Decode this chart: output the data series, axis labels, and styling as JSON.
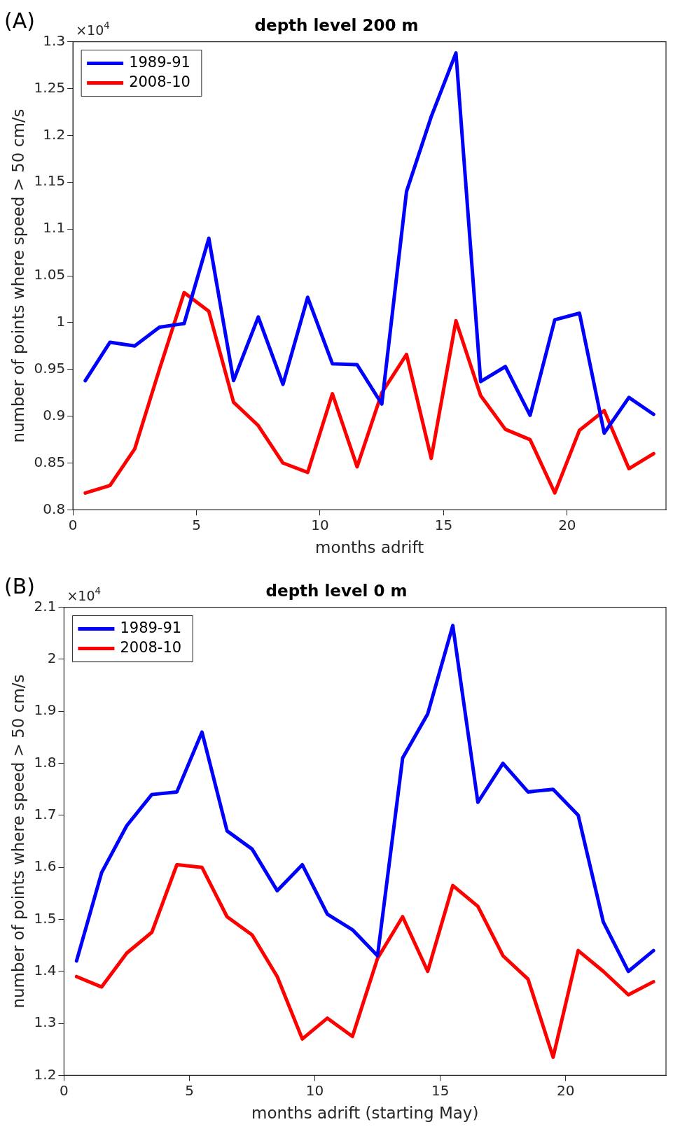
{
  "chart_data": [
    {
      "type": "line",
      "title": "depth level 200 m",
      "xlabel": "months adrift",
      "ylabel": "number of points where speed > 50 cm/s",
      "annotations": [
        "(A)",
        "×10$^{4}$"
      ],
      "x": [
        0.5,
        1.5,
        2.5,
        3.5,
        4.5,
        5.5,
        6.5,
        7.5,
        8.5,
        9.5,
        10.5,
        11.5,
        12.5,
        13.5,
        14.5,
        15.5,
        16.5,
        17.5,
        18.5,
        19.5,
        20.5,
        21.5,
        22.5,
        23.5
      ],
      "xlim": [
        0,
        24
      ],
      "xticks": [
        0,
        5,
        10,
        15,
        20
      ],
      "ylim": [
        0.8,
        1.3
      ],
      "yticks": [
        0.8,
        0.85,
        0.9,
        0.95,
        1,
        1.05,
        1.1,
        1.15,
        1.2,
        1.25,
        1.3
      ],
      "grid": false,
      "legend": "top left",
      "marker": "none",
      "line_style": "solid",
      "series": [
        {
          "name": "1989-91",
          "color": "#0000ff",
          "values": [
            0.938,
            0.979,
            0.975,
            0.995,
            0.999,
            1.09,
            0.938,
            1.006,
            0.934,
            1.027,
            0.956,
            0.955,
            0.913,
            1.14,
            1.22,
            1.288,
            0.937,
            0.953,
            0.901,
            1.003,
            1.01,
            0.882,
            0.92,
            0.902
          ]
        },
        {
          "name": "2008-10",
          "color": "#ff0000",
          "values": [
            0.818,
            0.826,
            0.865,
            0.95,
            1.032,
            1.012,
            0.915,
            0.89,
            0.85,
            0.84,
            0.924,
            0.846,
            0.925,
            0.966,
            0.855,
            1.002,
            0.922,
            0.886,
            0.875,
            0.818,
            0.885,
            0.906,
            0.844,
            0.86
          ]
        }
      ]
    },
    {
      "type": "line",
      "title": "depth level 0 m",
      "xlabel": "months adrift (starting May)",
      "ylabel": "number of points where speed > 50 cm/s",
      "annotations": [
        "(B)",
        "×10$^{4}$"
      ],
      "x": [
        0.5,
        1.5,
        2.5,
        3.5,
        4.5,
        5.5,
        6.5,
        7.5,
        8.5,
        9.5,
        10.5,
        11.5,
        12.5,
        13.5,
        14.5,
        15.5,
        16.5,
        17.5,
        18.5,
        19.5,
        20.5,
        21.5,
        22.5,
        23.5
      ],
      "xlim": [
        0,
        24
      ],
      "xticks": [
        0,
        5,
        10,
        15,
        20
      ],
      "ylim": [
        1.2,
        2.1
      ],
      "yticks": [
        1.2,
        1.3,
        1.4,
        1.5,
        1.6,
        1.7,
        1.8,
        1.9,
        2,
        2.1
      ],
      "grid": false,
      "legend": "top left",
      "marker": "none",
      "line_style": "solid",
      "series": [
        {
          "name": "1989-91",
          "color": "#0000ff",
          "values": [
            1.42,
            1.59,
            1.68,
            1.74,
            1.745,
            1.86,
            1.67,
            1.635,
            1.555,
            1.605,
            1.51,
            1.48,
            1.43,
            1.81,
            1.895,
            2.065,
            1.725,
            1.8,
            1.745,
            1.75,
            1.7,
            1.495,
            1.4,
            1.44
          ]
        },
        {
          "name": "2008-10",
          "color": "#ff0000",
          "values": [
            1.39,
            1.37,
            1.435,
            1.475,
            1.605,
            1.6,
            1.505,
            1.47,
            1.39,
            1.27,
            1.31,
            1.275,
            1.425,
            1.505,
            1.4,
            1.565,
            1.525,
            1.43,
            1.385,
            1.235,
            1.44,
            1.4,
            1.355,
            1.38
          ]
        }
      ]
    }
  ]
}
